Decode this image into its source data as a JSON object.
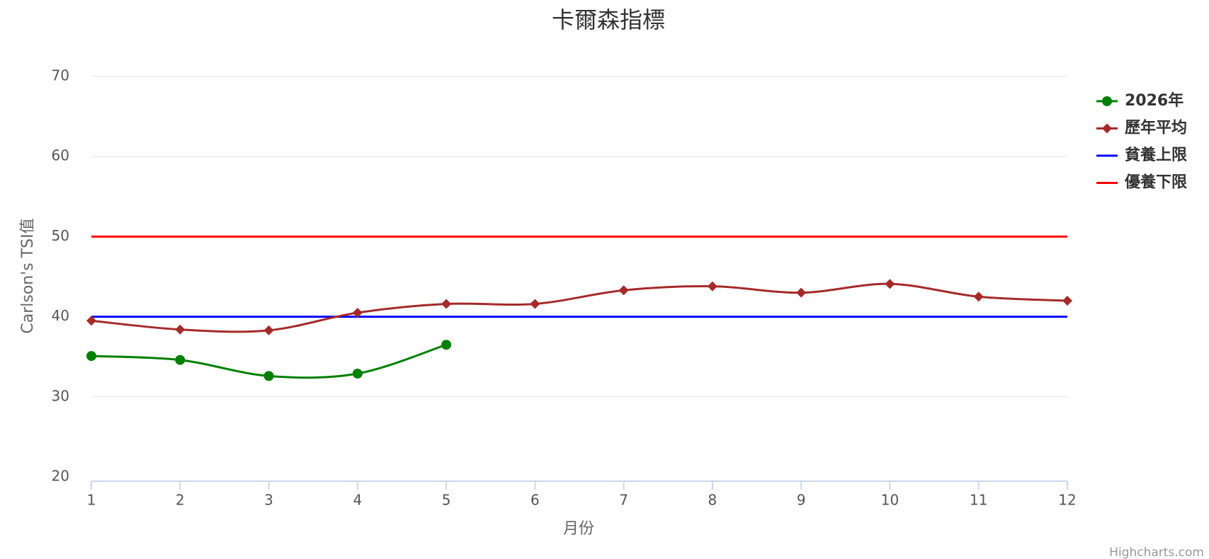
{
  "chart_data": {
    "type": "line",
    "title": "卡爾森指標",
    "x_label": "月份",
    "y_label": "Carlson's TSI值",
    "credits": "Highcharts.com",
    "x": [
      1,
      2,
      3,
      4,
      5,
      6,
      7,
      8,
      9,
      10,
      11,
      12
    ],
    "xlim": [
      1,
      12
    ],
    "xticks": [
      1,
      2,
      3,
      4,
      5,
      6,
      7,
      8,
      9,
      10,
      11,
      12
    ],
    "ylim": [
      20,
      70
    ],
    "yticks": [
      20,
      30,
      40,
      50,
      60,
      70
    ],
    "grid": true,
    "legend": "right",
    "smooth": true,
    "series": [
      {
        "name": "2026年",
        "color": "#008000",
        "marker": "circle",
        "values": [
          35.1,
          34.6,
          32.6,
          32.9,
          36.5,
          null,
          null,
          null,
          null,
          null,
          null,
          null
        ]
      },
      {
        "name": "歷年平均",
        "color": "#a52a2a",
        "marker": "diamond",
        "values": [
          39.5,
          38.4,
          38.3,
          40.5,
          41.6,
          41.6,
          43.3,
          43.8,
          43.0,
          44.1,
          42.5,
          42.0
        ]
      },
      {
        "name": "貧養上限",
        "color": "#0000ff",
        "marker": "none",
        "values": [
          40,
          40,
          40,
          40,
          40,
          40,
          40,
          40,
          40,
          40,
          40,
          40
        ]
      },
      {
        "name": "優養下限",
        "color": "#ff0000",
        "marker": "none",
        "values": [
          50,
          50,
          50,
          50,
          50,
          50,
          50,
          50,
          50,
          50,
          50,
          50
        ]
      }
    ]
  }
}
